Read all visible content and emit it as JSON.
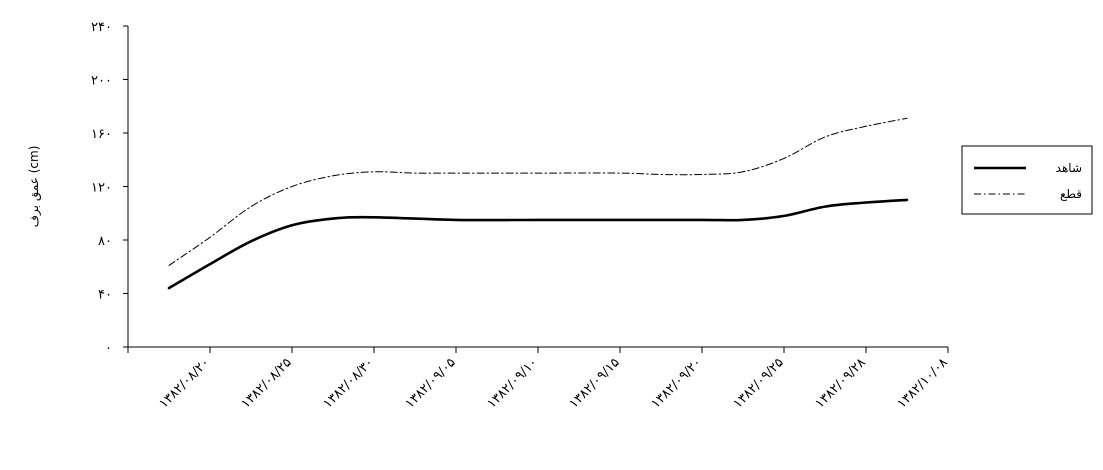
{
  "chart_data": {
    "type": "line",
    "title": "",
    "xlabel": "",
    "ylabel": "عمق برف (cm)",
    "ylim": [
      0,
      240
    ],
    "y_ticks": [
      "۰",
      "۴۰",
      "۸۰",
      "۱۲۰",
      "۱۶۰",
      "۲۰۰",
      "۲۴۰"
    ],
    "y_tick_values": [
      0,
      40,
      80,
      120,
      160,
      200,
      240
    ],
    "categories": [
      "۱۳۸۲/۰۸/۲۰",
      "۱۳۸۲/۰۸/۲۵",
      "۱۳۸۲/۰۸/۳۰",
      "۱۳۸۲/۰۹/۰۵",
      "۱۳۸۲/۰۹/۱۰",
      "۱۳۸۲/۰۹/۱۵",
      "۱۳۸۲/۰۹/۲۰",
      "۱۳۸۲/۰۹/۲۵",
      "۱۳۸۲/۰۹/۲۸",
      "۱۳۸۲/۱۰/۰۸"
    ],
    "grid": false,
    "legend_position": "right",
    "series": [
      {
        "name": "شاهد",
        "style": "solid",
        "color": "#000000",
        "x": [
          0.5,
          1.0,
          1.5,
          2.0,
          2.5,
          3.0,
          4.0,
          5.0,
          6.0,
          7.0,
          7.5,
          8.0,
          8.5,
          9.0,
          9.5
        ],
        "values": [
          44,
          62,
          79,
          91,
          96,
          97,
          95,
          95,
          95,
          95,
          95,
          98,
          105,
          108,
          110
        ]
      },
      {
        "name": "قطع",
        "style": "dashdot",
        "color": "#000000",
        "x": [
          0.5,
          1.0,
          1.5,
          2.0,
          2.5,
          3.0,
          3.5,
          4.0,
          5.0,
          6.0,
          6.5,
          7.0,
          7.5,
          8.0,
          8.5,
          9.0,
          9.5
        ],
        "values": [
          61,
          82,
          105,
          120,
          128,
          131,
          130,
          130,
          130,
          130,
          129,
          129,
          131,
          141,
          157,
          165,
          171
        ]
      }
    ]
  },
  "colors": {
    "line": "#000000",
    "background": "#ffffff"
  }
}
